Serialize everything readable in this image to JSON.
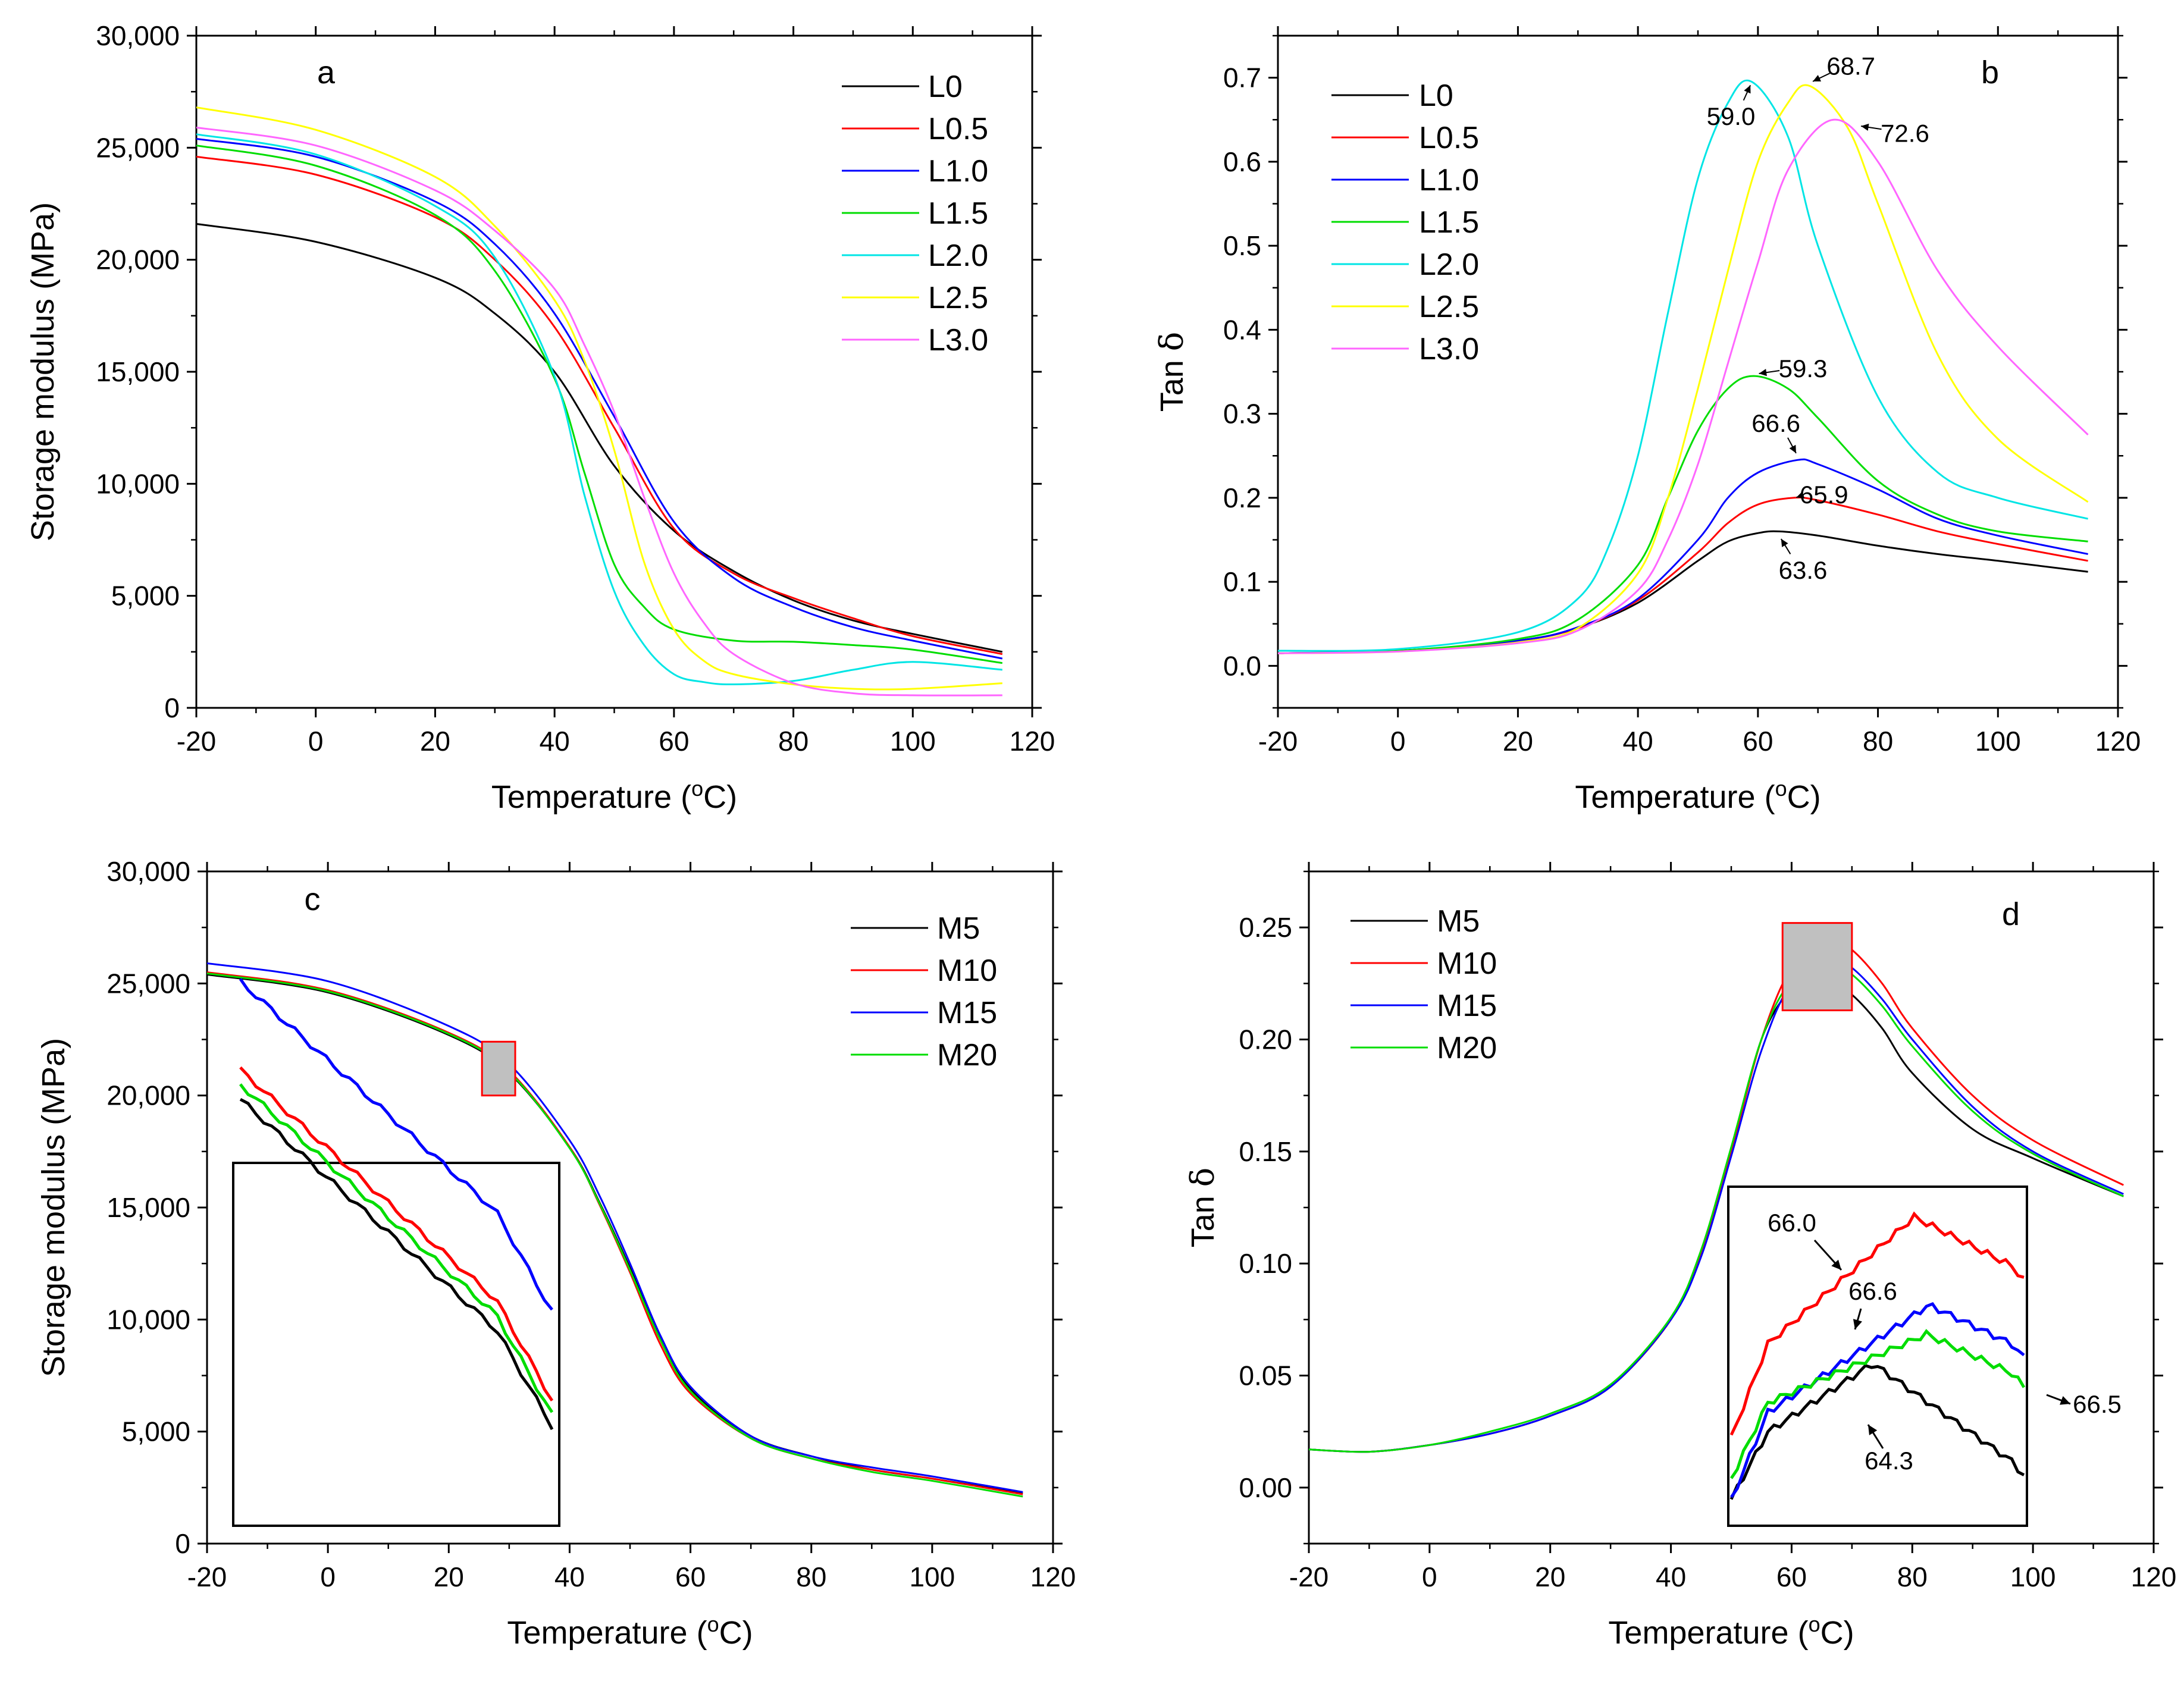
{
  "figure": {
    "x_axis_label": "Temperature (",
    "x_axis_unit_sup": "o",
    "x_axis_unit_tail": "C)"
  },
  "chart_data": [
    {
      "panel_letter": "a",
      "type": "line",
      "ylabel": "Storage modulus (MPa)",
      "xlim": [
        -20,
        120
      ],
      "ylim": [
        0,
        30000
      ],
      "x_ticks": [
        -20,
        0,
        20,
        40,
        60,
        80,
        100,
        120
      ],
      "x_tick_labels": [
        "-20",
        "0",
        "20",
        "40",
        "60",
        "80",
        "100",
        "120"
      ],
      "y_ticks": [
        0,
        5000,
        10000,
        15000,
        20000,
        25000,
        30000
      ],
      "y_tick_labels": [
        "0",
        "5,000",
        "10,000",
        "15,000",
        "20,000",
        "25,000",
        "30,000"
      ],
      "legend_position": "top-right",
      "series": [
        {
          "name": "L0",
          "color": "#000000",
          "x": [
            -20,
            0,
            20,
            30,
            40,
            50,
            60,
            70,
            80,
            90,
            100,
            115
          ],
          "y": [
            21600,
            20800,
            19200,
            17600,
            15000,
            10800,
            7900,
            6100,
            4800,
            3900,
            3300,
            2500
          ]
        },
        {
          "name": "L0.5",
          "color": "#ff0000",
          "x": [
            -20,
            0,
            20,
            30,
            40,
            50,
            60,
            70,
            80,
            90,
            100,
            115
          ],
          "y": [
            24600,
            23800,
            21900,
            20000,
            17000,
            12500,
            8000,
            6000,
            4900,
            4000,
            3200,
            2400
          ]
        },
        {
          "name": "L1.0",
          "color": "#0000ff",
          "x": [
            -20,
            0,
            20,
            30,
            40,
            50,
            60,
            70,
            80,
            90,
            100,
            115
          ],
          "y": [
            25400,
            24600,
            22600,
            20700,
            17600,
            13000,
            8300,
            5800,
            4500,
            3600,
            3000,
            2200
          ]
        },
        {
          "name": "L1.5",
          "color": "#00dd00",
          "x": [
            -20,
            0,
            20,
            30,
            40,
            45,
            50,
            55,
            60,
            70,
            80,
            90,
            100,
            115
          ],
          "y": [
            25100,
            24200,
            22000,
            19500,
            14700,
            10500,
            6400,
            4500,
            3500,
            3000,
            2950,
            2800,
            2600,
            2000
          ]
        },
        {
          "name": "L2.0",
          "color": "#00e5e5",
          "x": [
            -20,
            0,
            20,
            30,
            40,
            45,
            50,
            55,
            60,
            65,
            70,
            80,
            90,
            100,
            115
          ],
          "y": [
            25600,
            24700,
            22400,
            20100,
            14800,
            9500,
            5200,
            2800,
            1500,
            1150,
            1050,
            1200,
            1700,
            2050,
            1700
          ]
        },
        {
          "name": "L2.5",
          "color": "#ffff00",
          "x": [
            -20,
            0,
            20,
            30,
            40,
            45,
            50,
            55,
            60,
            65,
            70,
            80,
            90,
            100,
            115
          ],
          "y": [
            26800,
            25800,
            23700,
            21500,
            18200,
            15500,
            11500,
            6500,
            3500,
            2100,
            1500,
            1050,
            850,
            850,
            1100
          ]
        },
        {
          "name": "L3.0",
          "color": "#ff66ff",
          "x": [
            -20,
            0,
            20,
            30,
            40,
            45,
            50,
            55,
            60,
            65,
            70,
            80,
            90,
            100,
            115
          ],
          "y": [
            25900,
            25100,
            23100,
            21300,
            18700,
            16200,
            13200,
            9400,
            6000,
            3800,
            2400,
            1100,
            650,
            560,
            560
          ]
        }
      ]
    },
    {
      "panel_letter": "b",
      "type": "line",
      "ylabel_text": "Tan ",
      "ylabel_symbol": "δ",
      "xlim": [
        -20,
        120
      ],
      "ylim": [
        -0.05,
        0.75
      ],
      "x_ticks": [
        -20,
        0,
        20,
        40,
        60,
        80,
        100,
        120
      ],
      "x_tick_labels": [
        "-20",
        "0",
        "20",
        "40",
        "60",
        "80",
        "100",
        "120"
      ],
      "y_ticks": [
        0,
        0.1,
        0.2,
        0.3,
        0.4,
        0.5,
        0.6,
        0.7
      ],
      "y_tick_labels": [
        "0.0",
        "0.1",
        "0.2",
        "0.3",
        "0.4",
        "0.5",
        "0.6",
        "0.7"
      ],
      "legend_position": "top-left",
      "series": [
        {
          "name": "L0",
          "color": "#000000",
          "x": [
            -20,
            0,
            20,
            30,
            40,
            50,
            55,
            60,
            63.6,
            70,
            80,
            90,
            100,
            115
          ],
          "y": [
            0.015,
            0.018,
            0.03,
            0.045,
            0.075,
            0.125,
            0.148,
            0.158,
            0.16,
            0.155,
            0.143,
            0.133,
            0.125,
            0.112
          ]
        },
        {
          "name": "L0.5",
          "color": "#ff0000",
          "x": [
            -20,
            0,
            20,
            30,
            40,
            50,
            55,
            60,
            65.9,
            70,
            80,
            90,
            100,
            115
          ],
          "y": [
            0.015,
            0.018,
            0.03,
            0.045,
            0.078,
            0.135,
            0.17,
            0.192,
            0.2,
            0.197,
            0.18,
            0.16,
            0.145,
            0.125
          ]
        },
        {
          "name": "L1.0",
          "color": "#0000ff",
          "x": [
            -20,
            0,
            20,
            30,
            40,
            50,
            55,
            60,
            66.6,
            70,
            80,
            90,
            100,
            115
          ],
          "y": [
            0.015,
            0.018,
            0.03,
            0.046,
            0.08,
            0.15,
            0.2,
            0.23,
            0.245,
            0.24,
            0.21,
            0.175,
            0.155,
            0.133
          ]
        },
        {
          "name": "L1.5",
          "color": "#00dd00",
          "x": [
            -20,
            0,
            20,
            30,
            40,
            45,
            50,
            55,
            59.3,
            65,
            70,
            80,
            90,
            100,
            115
          ],
          "y": [
            0.015,
            0.018,
            0.032,
            0.055,
            0.12,
            0.2,
            0.28,
            0.33,
            0.345,
            0.33,
            0.295,
            0.22,
            0.18,
            0.16,
            0.148
          ]
        },
        {
          "name": "L2.0",
          "color": "#00e5e5",
          "x": [
            -20,
            0,
            20,
            30,
            35,
            40,
            45,
            50,
            55,
            59,
            65,
            70,
            80,
            90,
            100,
            115
          ],
          "y": [
            0.018,
            0.02,
            0.04,
            0.08,
            0.14,
            0.25,
            0.42,
            0.58,
            0.67,
            0.695,
            0.63,
            0.5,
            0.32,
            0.23,
            0.2,
            0.175
          ]
        },
        {
          "name": "L2.5",
          "color": "#ffff00",
          "x": [
            -20,
            0,
            20,
            30,
            40,
            45,
            50,
            55,
            60,
            65,
            68.7,
            75,
            80,
            90,
            100,
            115
          ],
          "y": [
            0.015,
            0.017,
            0.028,
            0.045,
            0.11,
            0.2,
            0.33,
            0.47,
            0.6,
            0.67,
            0.69,
            0.64,
            0.55,
            0.37,
            0.27,
            0.195
          ]
        },
        {
          "name": "L3.0",
          "color": "#ff66ff",
          "x": [
            -20,
            0,
            20,
            30,
            40,
            45,
            50,
            55,
            60,
            65,
            72.6,
            80,
            90,
            100,
            115
          ],
          "y": [
            0.015,
            0.017,
            0.027,
            0.042,
            0.09,
            0.15,
            0.24,
            0.36,
            0.48,
            0.59,
            0.65,
            0.6,
            0.47,
            0.38,
            0.275
          ]
        }
      ],
      "annotations": [
        {
          "text": "59.0",
          "x": 55.5,
          "y": 0.655
        },
        {
          "text": "68.7",
          "x": 75.5,
          "y": 0.715
        },
        {
          "text": "72.6",
          "x": 84.5,
          "y": 0.635
        },
        {
          "text": "59.3",
          "x": 67.5,
          "y": 0.355
        },
        {
          "text": "66.6",
          "x": 63,
          "y": 0.29
        },
        {
          "text": "65.9",
          "x": 71,
          "y": 0.205
        },
        {
          "text": "63.6",
          "x": 67.5,
          "y": 0.115
        }
      ]
    },
    {
      "panel_letter": "c",
      "type": "line",
      "ylabel": "Storage modulus (MPa)",
      "xlim": [
        -20,
        120
      ],
      "ylim": [
        0,
        30000
      ],
      "x_ticks": [
        -20,
        0,
        20,
        40,
        60,
        80,
        100,
        120
      ],
      "x_tick_labels": [
        "-20",
        "0",
        "20",
        "40",
        "60",
        "80",
        "100",
        "120"
      ],
      "y_ticks": [
        0,
        5000,
        10000,
        15000,
        20000,
        25000,
        30000
      ],
      "y_tick_labels": [
        "0",
        "5,000",
        "10,000",
        "15,000",
        "20,000",
        "25,000",
        "30,000"
      ],
      "legend_position": "top-right",
      "inset": "zoom of highlighted region around 28 °C",
      "series": [
        {
          "name": "M5",
          "color": "#000000",
          "x": [
            -20,
            0,
            20,
            30,
            40,
            45,
            50,
            55,
            60,
            70,
            80,
            90,
            100,
            115
          ],
          "y": [
            25400,
            24600,
            22700,
            21000,
            17700,
            15200,
            12300,
            9200,
            6900,
            4800,
            3900,
            3300,
            2900,
            2250
          ]
        },
        {
          "name": "M10",
          "color": "#ff0000",
          "x": [
            -20,
            0,
            20,
            30,
            40,
            45,
            50,
            55,
            60,
            70,
            80,
            90,
            100,
            115
          ],
          "y": [
            25500,
            24700,
            22800,
            21100,
            17700,
            15100,
            12100,
            8900,
            6700,
            4700,
            3800,
            3300,
            2900,
            2200
          ]
        },
        {
          "name": "M15",
          "color": "#0000ff",
          "x": [
            -20,
            0,
            20,
            30,
            40,
            45,
            50,
            55,
            60,
            70,
            80,
            90,
            100,
            115
          ],
          "y": [
            25900,
            25100,
            23100,
            21400,
            18000,
            15500,
            12500,
            9300,
            7000,
            4800,
            3900,
            3400,
            3000,
            2300
          ]
        },
        {
          "name": "M20",
          "color": "#00dd00",
          "x": [
            -20,
            0,
            20,
            30,
            40,
            45,
            50,
            55,
            60,
            70,
            80,
            90,
            100,
            115
          ],
          "y": [
            25450,
            24650,
            22750,
            21050,
            17650,
            15150,
            12200,
            9100,
            6800,
            4700,
            3800,
            3200,
            2800,
            2100
          ]
        }
      ]
    },
    {
      "panel_letter": "d",
      "type": "line",
      "ylabel_text": "Tan ",
      "ylabel_symbol": "δ",
      "xlim": [
        -20,
        120
      ],
      "ylim": [
        -0.025,
        0.275
      ],
      "x_ticks": [
        -20,
        0,
        20,
        40,
        60,
        80,
        100,
        120
      ],
      "x_tick_labels": [
        "-20",
        "0",
        "20",
        "40",
        "60",
        "80",
        "100",
        "120"
      ],
      "y_ticks": [
        0,
        0.05,
        0.1,
        0.15,
        0.2,
        0.25
      ],
      "y_tick_labels": [
        "0.00",
        "0.05",
        "0.10",
        "0.15",
        "0.20",
        "0.25"
      ],
      "legend_position": "top-left",
      "inset": "zoom of highlighted peak region",
      "series": [
        {
          "name": "M5",
          "color": "#000000",
          "x": [
            -20,
            -10,
            0,
            10,
            20,
            30,
            40,
            45,
            50,
            55,
            60,
            64.3,
            70,
            75,
            80,
            90,
            100,
            115
          ],
          "y": [
            0.017,
            0.016,
            0.019,
            0.024,
            0.032,
            0.045,
            0.075,
            0.105,
            0.15,
            0.2,
            0.223,
            0.23,
            0.22,
            0.205,
            0.185,
            0.16,
            0.147,
            0.13
          ]
        },
        {
          "name": "M10",
          "color": "#ff0000",
          "x": [
            -20,
            -10,
            0,
            10,
            20,
            30,
            40,
            45,
            50,
            55,
            60,
            66.0,
            70,
            75,
            80,
            90,
            100,
            115
          ],
          "y": [
            0.017,
            0.016,
            0.019,
            0.024,
            0.032,
            0.045,
            0.075,
            0.105,
            0.15,
            0.2,
            0.232,
            0.245,
            0.24,
            0.225,
            0.205,
            0.175,
            0.155,
            0.135
          ]
        },
        {
          "name": "M15",
          "color": "#0000ff",
          "x": [
            -20,
            -10,
            0,
            10,
            20,
            30,
            40,
            45,
            50,
            55,
            60,
            66.6,
            70,
            75,
            80,
            90,
            100,
            115
          ],
          "y": [
            0.017,
            0.016,
            0.019,
            0.024,
            0.032,
            0.045,
            0.075,
            0.103,
            0.148,
            0.195,
            0.225,
            0.236,
            0.232,
            0.218,
            0.2,
            0.17,
            0.15,
            0.131
          ]
        },
        {
          "name": "M20",
          "color": "#00dd00",
          "x": [
            -20,
            -10,
            0,
            10,
            20,
            30,
            40,
            45,
            50,
            55,
            60,
            66.5,
            70,
            75,
            80,
            90,
            100,
            115
          ],
          "y": [
            0.017,
            0.016,
            0.019,
            0.025,
            0.033,
            0.046,
            0.076,
            0.106,
            0.152,
            0.2,
            0.226,
            0.233,
            0.229,
            0.215,
            0.197,
            0.168,
            0.149,
            0.13
          ]
        }
      ],
      "inset_annotations": [
        "66.0",
        "66.6",
        "66.5",
        "64.3"
      ]
    }
  ]
}
